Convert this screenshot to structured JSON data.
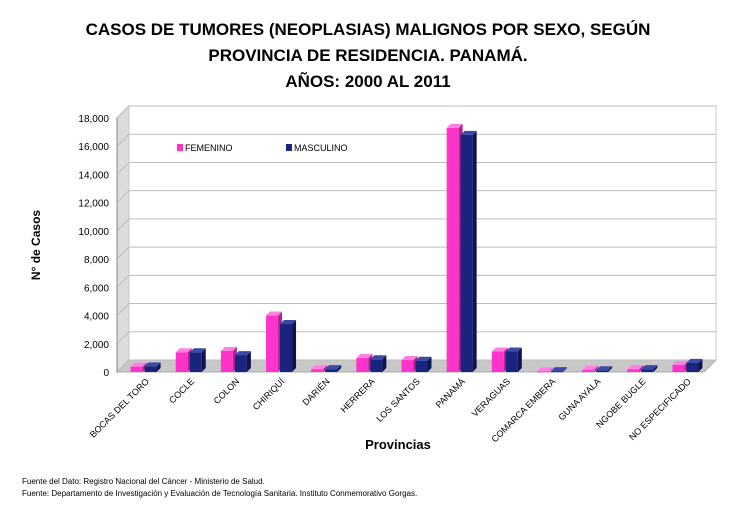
{
  "title_lines": [
    "CASOS DE TUMORES (NEOPLASIAS) MALIGNOS POR SEXO, SEGÚN",
    "PROVINCIA DE RESIDENCIA. PANAMÁ.",
    "AÑOS: 2000 AL 2011"
  ],
  "footer": {
    "line1": "Fuente del Dato: Registro Nacional del Cáncer - Ministerio de Salud.",
    "line2": "Fuente: Departamento de Investigación y Evaluación de Tecnología Sanitaria. Instituto Conmemorativo Gorgas."
  },
  "colors": {
    "femenino": "#ff33cc",
    "masculino": "#1a237e"
  },
  "chart_data": {
    "type": "bar",
    "title": "CASOS DE TUMORES (NEOPLASIAS) MALIGNOS POR SEXO, SEGÚN PROVINCIA DE RESIDENCIA. PANAMÁ. AÑOS: 2000 AL 2011",
    "xlabel": "Provincias",
    "ylabel": "N° de Casos",
    "ylim": [
      0,
      18000
    ],
    "yticks": [
      "0",
      "2,000",
      "4,000",
      "6,000",
      "8,000",
      "10,000",
      "12,000",
      "14,000",
      "16,000",
      "18,000"
    ],
    "ytick_values": [
      0,
      2000,
      4000,
      6000,
      8000,
      10000,
      12000,
      14000,
      16000,
      18000
    ],
    "grid": true,
    "legend": "top-left",
    "categories": [
      "BOCAS DEL TORO",
      "COCLE",
      "COLON",
      "CHIRIQUÍ",
      "DARIÉN",
      "HERRERA",
      "LOS SANTOS",
      "PANAMÁ",
      "VERAGUAS",
      "COMARCA EMBERA",
      "GUNA AYALA",
      "NGOBE BUGLE",
      "NO ESPECIFICADO"
    ],
    "series": [
      {
        "name": "FEMENINO",
        "values": [
          380,
          1400,
          1500,
          4000,
          200,
          1000,
          850,
          17300,
          1450,
          50,
          150,
          200,
          500
        ]
      },
      {
        "name": "MASCULINO",
        "values": [
          400,
          1400,
          1200,
          3400,
          200,
          900,
          800,
          16800,
          1450,
          60,
          120,
          200,
          650
        ]
      }
    ]
  }
}
